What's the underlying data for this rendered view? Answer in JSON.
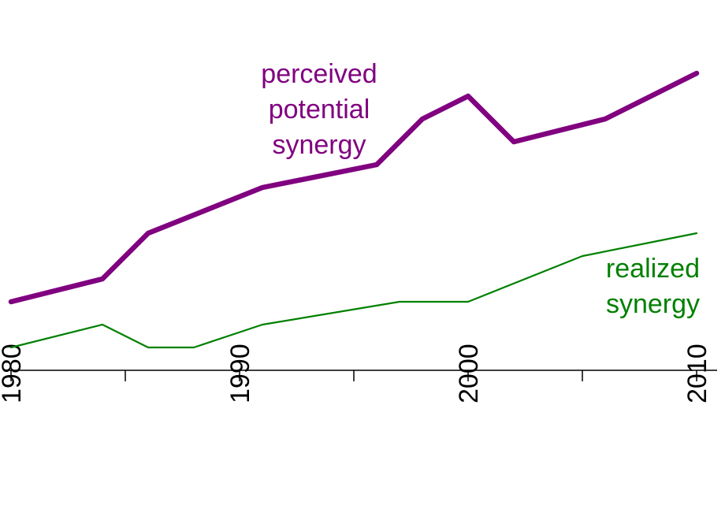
{
  "chart_data": {
    "type": "line",
    "title": "",
    "xlabel": "",
    "ylabel": "",
    "xlim": [
      1980,
      2010
    ],
    "ylim": [
      0,
      14
    ],
    "x_ticks": [
      1980,
      1985,
      1990,
      1995,
      2000,
      2005,
      2010
    ],
    "x_tick_labels": [
      "1980",
      "1990",
      "2000",
      "2010"
    ],
    "grid": false,
    "series": [
      {
        "name": "perceived potential synergy",
        "label_lines": [
          "perceived",
          "potential",
          "synergy"
        ],
        "color": "#800080",
        "line_weight": "thick",
        "x": [
          1980,
          1984,
          1986,
          1991,
          1996,
          1998,
          2000,
          2002,
          2006,
          2010
        ],
        "y": [
          3,
          4,
          6,
          8,
          9,
          11,
          12,
          10,
          11,
          13
        ]
      },
      {
        "name": "realized synergy",
        "label_lines": [
          "realized",
          "synergy"
        ],
        "color": "#008000",
        "line_weight": "thin",
        "x": [
          1980,
          1984,
          1986,
          1988,
          1991,
          1997,
          2000,
          2005,
          2010
        ],
        "y": [
          1,
          2,
          1,
          1,
          2,
          3,
          3,
          5,
          6
        ]
      }
    ]
  }
}
